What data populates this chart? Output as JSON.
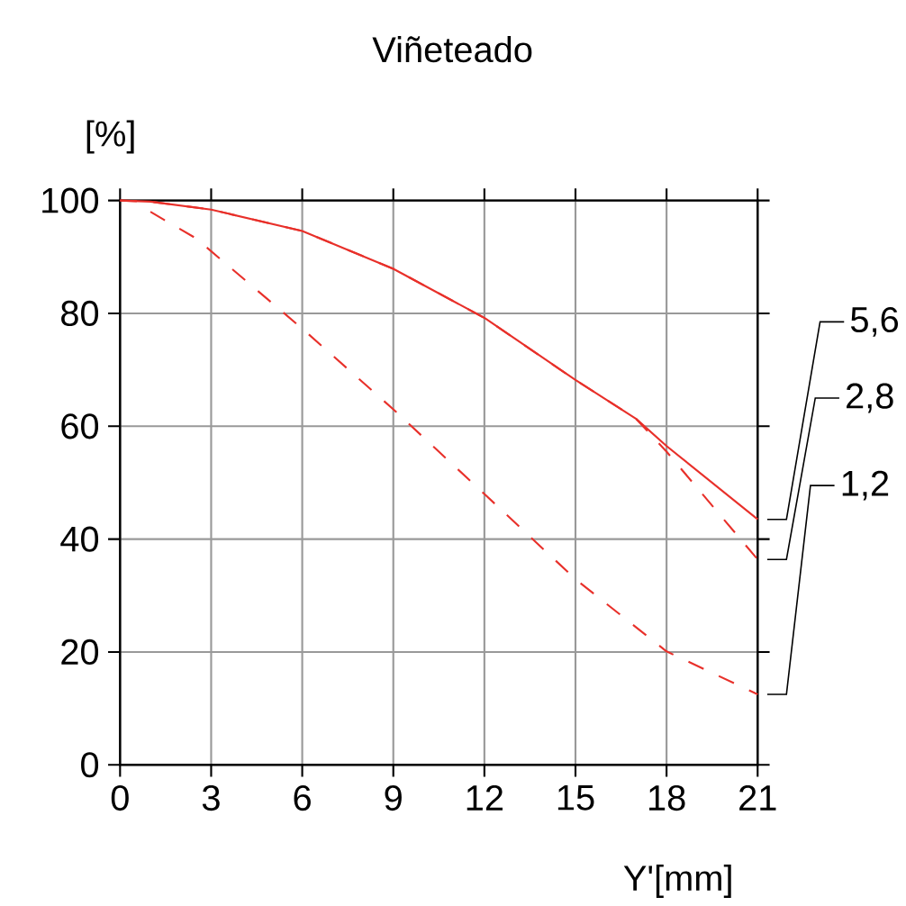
{
  "chart_data": {
    "type": "line",
    "title": "Viñeteado",
    "xlabel": "Y'[mm]",
    "ylabel": "[%]",
    "xlim": [
      0,
      21
    ],
    "ylim": [
      0,
      100
    ],
    "xticks": [
      0,
      3,
      6,
      9,
      12,
      15,
      18,
      21
    ],
    "yticks": [
      0,
      20,
      40,
      60,
      80,
      100
    ],
    "grid": true,
    "legend": false,
    "marker": "none",
    "series": [
      {
        "name": "5,6",
        "color": "#e8302a",
        "line_style": "solid",
        "x": [
          0,
          1,
          3,
          6,
          9,
          12,
          15,
          17,
          18,
          21
        ],
        "values": [
          100,
          99.8,
          98.4,
          94.6,
          87.9,
          79.2,
          68.2,
          61.3,
          56.5,
          43.5
        ]
      },
      {
        "name": "2,8",
        "color": "#e8302a",
        "line_style": "dashed",
        "x": [
          0,
          1,
          3,
          6,
          9,
          12,
          15,
          17,
          18,
          21
        ],
        "values": [
          100,
          99.8,
          98.4,
          94.6,
          87.9,
          79.2,
          68.2,
          61.3,
          55.5,
          36.4
        ]
      },
      {
        "name": "1,2",
        "color": "#e8302a",
        "line_style": "dashed",
        "x": [
          1,
          2.5,
          6,
          9,
          12,
          15,
          18,
          21
        ],
        "values": [
          98,
          93.3,
          77.3,
          63,
          48,
          32.9,
          20.1,
          12.5
        ]
      }
    ]
  }
}
